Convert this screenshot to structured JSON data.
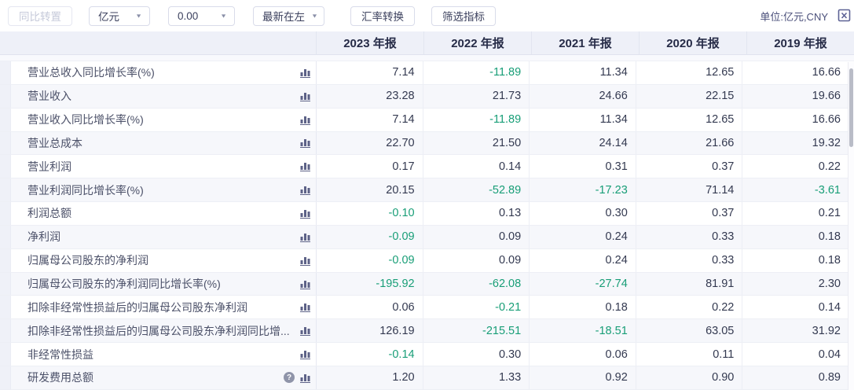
{
  "toolbar": {
    "transpose_label": "同比转置",
    "unit_value": "亿元",
    "decimal_value": "0.00",
    "order_value": "最新在左",
    "rate_convert_label": "汇率转换",
    "filter_label": "筛选指标",
    "unit_note": "单位:亿元,CNY",
    "export_icon": "excel-export-icon",
    "caret_icon": "chevron-down-icon"
  },
  "colors": {
    "negative_value": "#189e77",
    "positive_value": "#333950",
    "header_bg": "#eef0f8",
    "row_alt_bg": "#f6f7fb",
    "icon_slate": "#5d6287"
  },
  "table": {
    "columns": [
      "2023 年报",
      "2022 年报",
      "2021 年报",
      "2020 年报",
      "2019 年报"
    ],
    "rows": [
      {
        "label": "营业总收入同比增长率(%)",
        "help": false,
        "values": [
          "7.14",
          "-11.89",
          "11.34",
          "12.65",
          "16.66"
        ]
      },
      {
        "label": "营业收入",
        "help": false,
        "values": [
          "23.28",
          "21.73",
          "24.66",
          "22.15",
          "19.66"
        ]
      },
      {
        "label": "营业收入同比增长率(%)",
        "help": false,
        "values": [
          "7.14",
          "-11.89",
          "11.34",
          "12.65",
          "16.66"
        ]
      },
      {
        "label": "营业总成本",
        "help": false,
        "values": [
          "22.70",
          "21.50",
          "24.14",
          "21.66",
          "19.32"
        ]
      },
      {
        "label": "营业利润",
        "help": false,
        "values": [
          "0.17",
          "0.14",
          "0.31",
          "0.37",
          "0.22"
        ]
      },
      {
        "label": "营业利润同比增长率(%)",
        "help": false,
        "values": [
          "20.15",
          "-52.89",
          "-17.23",
          "71.14",
          "-3.61"
        ]
      },
      {
        "label": "利润总额",
        "help": false,
        "values": [
          "-0.10",
          "0.13",
          "0.30",
          "0.37",
          "0.21"
        ]
      },
      {
        "label": "净利润",
        "help": false,
        "values": [
          "-0.09",
          "0.09",
          "0.24",
          "0.33",
          "0.18"
        ]
      },
      {
        "label": "归属母公司股东的净利润",
        "help": false,
        "values": [
          "-0.09",
          "0.09",
          "0.24",
          "0.33",
          "0.18"
        ]
      },
      {
        "label": "归属母公司股东的净利润同比增长率(%)",
        "help": false,
        "values": [
          "-195.92",
          "-62.08",
          "-27.74",
          "81.91",
          "2.30"
        ]
      },
      {
        "label": "扣除非经常性损益后的归属母公司股东净利润",
        "help": false,
        "values": [
          "0.06",
          "-0.21",
          "0.18",
          "0.22",
          "0.14"
        ]
      },
      {
        "label": "扣除非经常性损益后的归属母公司股东净利润同比增...",
        "help": false,
        "values": [
          "126.19",
          "-215.51",
          "-18.51",
          "63.05",
          "31.92"
        ]
      },
      {
        "label": "非经常性损益",
        "help": false,
        "values": [
          "-0.14",
          "0.30",
          "0.06",
          "0.11",
          "0.04"
        ]
      },
      {
        "label": "研发费用总额",
        "help": true,
        "values": [
          "1.20",
          "1.33",
          "0.92",
          "0.90",
          "0.89"
        ]
      }
    ]
  }
}
